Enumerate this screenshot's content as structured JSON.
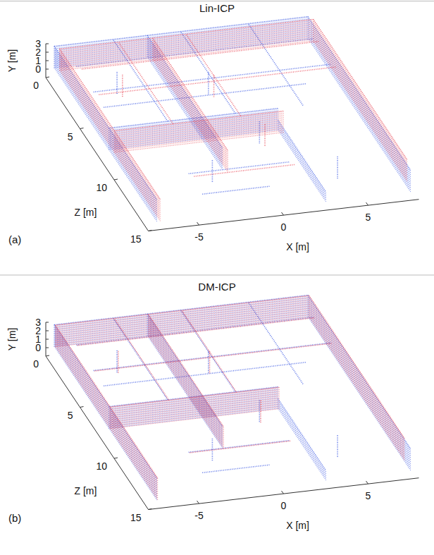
{
  "chart_data": [
    {
      "type": "scatter3d",
      "title": "Lin-ICP",
      "panel": "(a)",
      "xlabel": "X [m]",
      "ylabel": "Y [m]",
      "zlabel": "Z [m]",
      "xlim": [
        -8,
        8
      ],
      "ylim": [
        -1,
        3
      ],
      "zlim": [
        0,
        15
      ],
      "xticks": [
        -5,
        0,
        5
      ],
      "yticks": [
        0,
        1,
        2,
        3
      ],
      "zticks": [
        0,
        5,
        10,
        15
      ],
      "series": [
        {
          "color": "#2b4be0",
          "walls": [
            [
              -7.5,
              0,
              7.5,
              0,
              0,
              2.6
            ],
            [
              -7.5,
              0,
              -7.5,
              15,
              0,
              2.6
            ],
            [
              7.5,
              0,
              7.5,
              15,
              0,
              2.6
            ],
            [
              -2,
              0,
              -2,
              11,
              0,
              2.6
            ],
            [
              -7.5,
              8,
              2.5,
              8,
              0,
              2.6
            ],
            [
              2.5,
              8,
              2.5,
              15,
              0,
              1.2
            ]
          ],
          "beams": [
            [
              -7,
              2.5,
              2,
              7,
              2.5,
              2
            ],
            [
              -7,
              2.5,
              4.5,
              7,
              2.5,
              4.5
            ],
            [
              -7,
              2.5,
              6,
              5,
              2.5,
              6
            ],
            [
              -4,
              2.5,
              0,
              -4,
              2.5,
              8
            ],
            [
              0,
              2.5,
              0,
              0,
              2.5,
              8
            ],
            [
              4,
              2.5,
              0,
              4,
              2.5,
              8
            ],
            [
              -5,
              0,
              3,
              -5,
              2.6,
              3
            ],
            [
              0,
              0,
              4,
              0,
              2.6,
              4
            ],
            [
              1,
              0,
              9,
              1,
              2.6,
              9
            ],
            [
              4,
              0,
              13,
              4,
              2.6,
              13
            ],
            [
              -3,
              0,
              12,
              -3,
              2.6,
              12
            ],
            [
              -4,
              0,
              11,
              2,
              0,
              11
            ],
            [
              -4,
              0,
              13,
              0,
              0,
              13
            ]
          ]
        },
        {
          "color": "#e8404f",
          "walls": [
            [
              -7.3,
              0.3,
              7.7,
              0.3,
              0,
              2.6
            ],
            [
              -7.3,
              0.3,
              -7.3,
              15,
              0,
              2.6
            ],
            [
              7.7,
              0.3,
              7.7,
              14,
              0,
              2.6
            ],
            [
              -1.8,
              0.3,
              -1.8,
              11.3,
              0,
              2.6
            ],
            [
              -7.3,
              8.3,
              2.7,
              8.3,
              0,
              2.6
            ]
          ],
          "beams": [
            [
              -6.8,
              2.5,
              2.3,
              7.2,
              2.5,
              2.3
            ],
            [
              -6.8,
              2.5,
              4.8,
              7.2,
              2.5,
              4.8
            ],
            [
              -3.8,
              2.5,
              0.3,
              -3.8,
              2.5,
              8.3
            ],
            [
              0.2,
              2.5,
              0.3,
              0.2,
              2.5,
              8.3
            ],
            [
              -4.8,
              0,
              3.3,
              -4.8,
              2.6,
              3.3
            ],
            [
              0.2,
              0,
              4.3,
              0.2,
              2.6,
              4.3
            ],
            [
              1.2,
              0,
              9.3,
              1.2,
              2.6,
              9.3
            ],
            [
              -3.8,
              0,
              11.3,
              2.2,
              0,
              11.3
            ]
          ]
        }
      ]
    },
    {
      "type": "scatter3d",
      "title": "DM-ICP",
      "panel": "(b)",
      "xlabel": "X [m]",
      "ylabel": "Y [m]",
      "zlabel": "Z [m]",
      "xlim": [
        -8,
        8
      ],
      "ylim": [
        -1,
        3
      ],
      "zlim": [
        0,
        15
      ],
      "xticks": [
        -5,
        0,
        5
      ],
      "yticks": [
        0,
        1,
        2,
        3
      ],
      "zticks": [
        0,
        5,
        10,
        15
      ],
      "series": [
        {
          "color": "#2b4be0",
          "walls": [
            [
              -7.5,
              0,
              7.5,
              0,
              0,
              2.6
            ],
            [
              -7.5,
              0,
              -7.5,
              15,
              0,
              2.6
            ],
            [
              7.5,
              0,
              7.5,
              15,
              0,
              2.6
            ],
            [
              -2,
              0,
              -2,
              11,
              0,
              2.6
            ],
            [
              -7.5,
              8,
              2.5,
              8,
              0,
              2.6
            ],
            [
              2.5,
              8,
              2.5,
              15,
              0,
              1.2
            ]
          ],
          "beams": [
            [
              -7,
              2.5,
              2,
              7,
              2.5,
              2
            ],
            [
              -7,
              2.5,
              4.5,
              7,
              2.5,
              4.5
            ],
            [
              -7,
              2.5,
              6,
              5,
              2.5,
              6
            ],
            [
              -4,
              2.5,
              0,
              -4,
              2.5,
              8
            ],
            [
              0,
              2.5,
              0,
              0,
              2.5,
              8
            ],
            [
              4,
              2.5,
              0,
              4,
              2.5,
              8
            ],
            [
              -5,
              0,
              3,
              -5,
              2.6,
              3
            ],
            [
              0,
              0,
              4,
              0,
              2.6,
              4
            ],
            [
              1,
              0,
              9,
              1,
              2.6,
              9
            ],
            [
              4,
              0,
              13,
              4,
              2.6,
              13
            ],
            [
              -3,
              0,
              12,
              -3,
              2.6,
              12
            ],
            [
              -4,
              0,
              11,
              2,
              0,
              11
            ],
            [
              -4,
              0,
              13,
              0,
              0,
              13
            ]
          ]
        },
        {
          "color": "#e8404f",
          "walls": [
            [
              -7.45,
              0.05,
              7.55,
              0.05,
              0,
              2.6
            ],
            [
              -7.45,
              0.05,
              -7.45,
              15,
              0,
              2.6
            ],
            [
              7.55,
              0.05,
              7.55,
              14,
              0,
              2.6
            ],
            [
              -1.95,
              0.05,
              -1.95,
              11.05,
              0,
              2.6
            ],
            [
              -7.45,
              8.05,
              2.55,
              8.05,
              0,
              2.6
            ]
          ],
          "beams": [
            [
              -6.95,
              2.5,
              2.05,
              7.05,
              2.5,
              2.05
            ],
            [
              -6.95,
              2.5,
              4.55,
              7.05,
              2.5,
              4.55
            ],
            [
              -3.95,
              2.5,
              0.05,
              -3.95,
              2.5,
              8.05
            ],
            [
              0.05,
              2.5,
              0.05,
              0.05,
              2.5,
              8.05
            ],
            [
              -4.95,
              0,
              3.05,
              -4.95,
              2.6,
              3.05
            ],
            [
              0.05,
              0,
              4.05,
              0.05,
              2.6,
              4.05
            ],
            [
              1.05,
              0,
              9.05,
              1.05,
              2.6,
              9.05
            ],
            [
              -3.95,
              0,
              11.05,
              2.05,
              0,
              11.05
            ]
          ]
        }
      ]
    }
  ]
}
